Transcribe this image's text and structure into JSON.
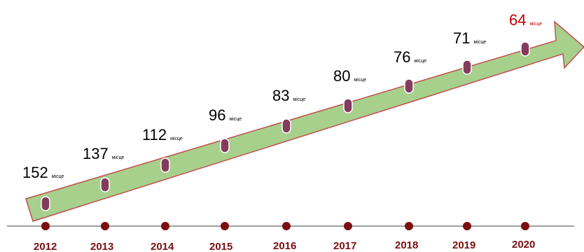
{
  "colors": {
    "arrow_fill": "#a8d08d",
    "arrow_stroke": "#c0504d",
    "marker_fill": "#843c5c",
    "marker_stroke": "#ffffff",
    "dot_fill": "#7b0f0f",
    "axis_line": "#404040",
    "text": "#000000",
    "year_text": "#7b1010",
    "highlight_text": "#c00000"
  },
  "unit_label": "місце",
  "entries": [
    {
      "year": "2012",
      "rank": "152",
      "highlight": false
    },
    {
      "year": "2013",
      "rank": "137",
      "highlight": false
    },
    {
      "year": "2014",
      "rank": "112",
      "highlight": false
    },
    {
      "year": "2015",
      "rank": "96",
      "highlight": false
    },
    {
      "year": "2016",
      "rank": "83",
      "highlight": false
    },
    {
      "year": "2017",
      "rank": "80",
      "highlight": false
    },
    {
      "year": "2018",
      "rank": "76",
      "highlight": false
    },
    {
      "year": "2019",
      "rank": "71",
      "highlight": false
    },
    {
      "year": "2020",
      "rank": "64",
      "highlight": true
    }
  ]
}
